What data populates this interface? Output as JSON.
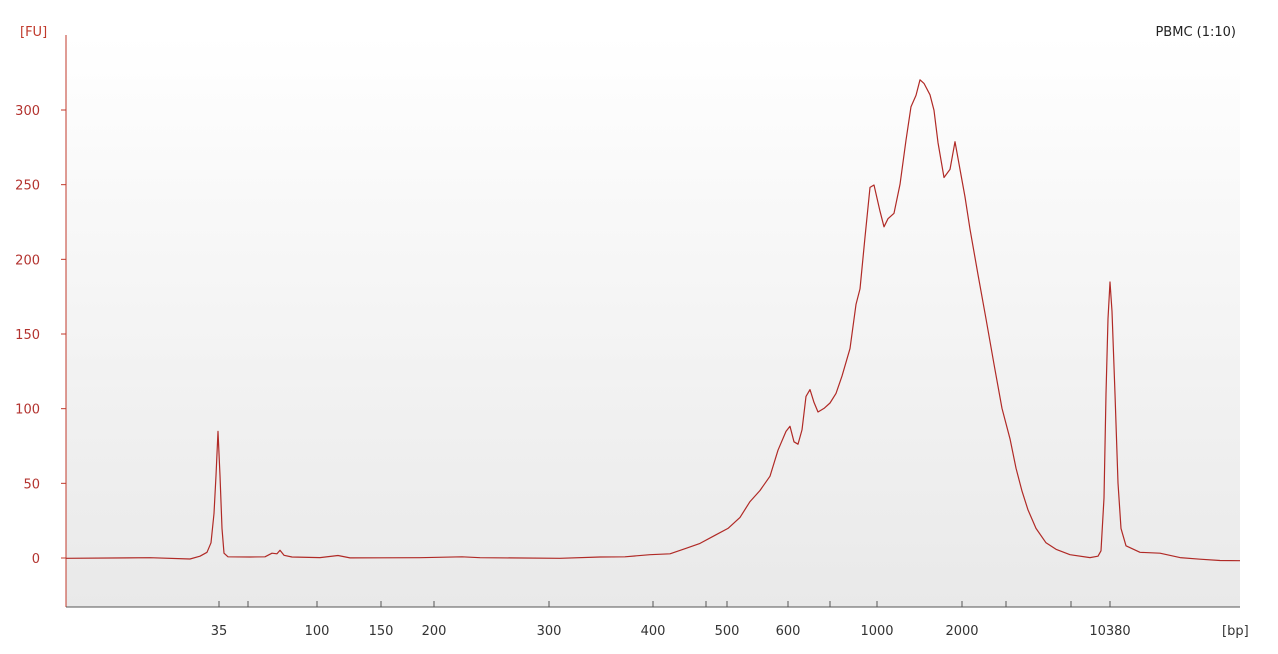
{
  "sample_title": "PBMC (1:10)",
  "colors": {
    "trace": "#b02a26",
    "y_axis": "#c0392b",
    "x_axis": "#555555",
    "background_top": "#ffffff",
    "background_bottom": "#e9e9e9"
  },
  "chart_data": {
    "type": "line",
    "title": "PBMC (1:10)",
    "xlabel": "[bp]",
    "ylabel": "[FU]",
    "ylim": [
      -35,
      335
    ],
    "grid": false,
    "x_tick_labels": [
      "35",
      "100",
      "150",
      "200",
      "300",
      "400",
      "500",
      "600",
      "1000",
      "2000",
      "10380"
    ],
    "y_ticks": [
      0,
      50,
      100,
      150,
      200,
      250,
      300
    ],
    "series": [
      {
        "points": [
          [
            "",
            0
          ],
          [
            "35",
            85
          ],
          [
            "100",
            1
          ],
          [
            "150",
            0
          ],
          [
            "200",
            0
          ],
          [
            "300",
            0
          ],
          [
            "400",
            3
          ],
          [
            "500",
            20
          ],
          [
            "600",
            88
          ],
          [
            "1000",
            250
          ],
          [
            "2000",
            278
          ],
          [
            "10380",
            185
          ]
        ]
      }
    ],
    "peaks": [
      {
        "size_bp": "35",
        "fu": 85
      },
      {
        "size_bp": "600",
        "fu": 88
      },
      {
        "size_bp": "1000",
        "fu": 250
      },
      {
        "size_bp": "2000",
        "fu": 278
      },
      {
        "size_bp": "10380",
        "fu": 185
      }
    ],
    "max_fu": 321
  }
}
